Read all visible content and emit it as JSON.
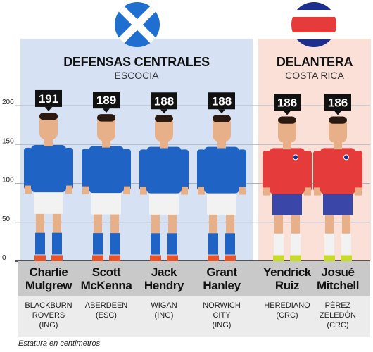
{
  "groups": {
    "scotland": {
      "title": "DEFENSAS CENTRALES",
      "subtitle": "ESCOCIA"
    },
    "costa_rica": {
      "title": "DELANTERA",
      "subtitle": "COSTA RICA"
    }
  },
  "footnote": "Estatura en centimetros",
  "colors": {
    "scotland_panel": "#d6e2f4",
    "costa_rica_panel": "#fbe0d8",
    "scotland_shirt": "#1f63c4",
    "costa_rica_shirt": "#e53b3a",
    "costa_rica_shorts": "#3a47a8",
    "label_box": "#111111"
  },
  "icons": [
    "scotland-flag-icon",
    "costa-rica-flag-icon"
  ],
  "chart_data": {
    "type": "bar",
    "ylim": [
      0,
      200
    ],
    "yticks": [
      0,
      50,
      100,
      150,
      200
    ],
    "categories": [
      "Charlie Mulgrew",
      "Scott McKenna",
      "Jack Hendry",
      "Grant Hanley",
      "Yendrick Ruiz",
      "Josué Mitchell"
    ],
    "values": [
      191,
      189,
      188,
      188,
      186,
      186
    ],
    "ylabel": "Estatura en centimetros"
  },
  "players": [
    {
      "name": "Charlie\nMulgrew",
      "club": "BLACKBURN\nROVERS\n(ING)",
      "height": "191",
      "team": "scotland"
    },
    {
      "name": "Scott\nMcKenna",
      "club": "ABERDEEN\n(ESC)",
      "height": "189",
      "team": "scotland"
    },
    {
      "name": "Jack\nHendry",
      "club": "WIGAN\n(ING)",
      "height": "188",
      "team": "scotland"
    },
    {
      "name": "Grant\nHanley",
      "club": "NORWICH\nCITY\n(ING)",
      "height": "188",
      "team": "scotland"
    },
    {
      "name": "Yendrick\nRuiz",
      "club": "HEREDIANO\n(CRC)",
      "height": "186",
      "team": "costa_rica"
    },
    {
      "name": "Josué\nMitchell",
      "club": "PÉREZ\nZELEDÓN\n(CRC)",
      "height": "186",
      "team": "costa_rica"
    }
  ]
}
